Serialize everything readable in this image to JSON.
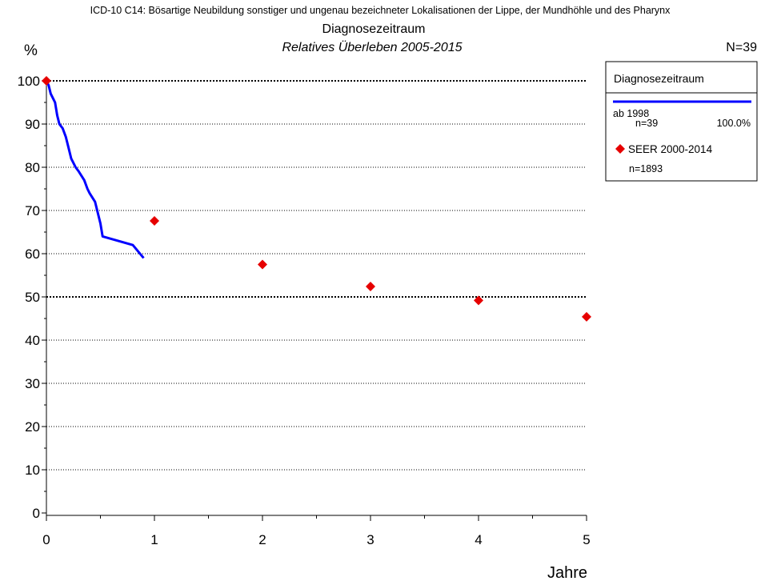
{
  "chart_data": {
    "type": "line",
    "suptitle": "ICD-10 C14: Bösartige Neubildung sonstiger und ungenau bezeichneter Lokalisationen der Lippe, der Mundhöhle und des Pharynx",
    "title": "Diagnosezeitraum",
    "subtitle": "Relatives Überleben 2005-2015",
    "ylabel": "%",
    "xlabel": "Jahre",
    "n_label": "N=39",
    "xlim": [
      0,
      5
    ],
    "ylim": [
      0,
      100
    ],
    "x_ticks": [
      "0",
      "1",
      "2",
      "3",
      "4",
      "5"
    ],
    "y_ticks": [
      "0",
      "10",
      "20",
      "30",
      "40",
      "50",
      "60",
      "70",
      "80",
      "90",
      "100"
    ],
    "grid": "horizontal dotted, every 10%",
    "legend_position": "top-right",
    "series": [
      {
        "name": "ab 1998",
        "style": "step-line",
        "color": "#0000ff",
        "x": [
          0,
          0.02,
          0.04,
          0.06,
          0.08,
          0.1,
          0.12,
          0.15,
          0.18,
          0.2,
          0.23,
          0.27,
          0.3,
          0.35,
          0.38,
          0.4,
          0.45,
          0.48,
          0.5,
          0.52,
          0.8,
          0.9
        ],
        "y": [
          100,
          99,
          97,
          96,
          95,
          92,
          90,
          89,
          87,
          85,
          82,
          80,
          79,
          77,
          75,
          74,
          72,
          69,
          67,
          64,
          62,
          59
        ]
      },
      {
        "name": "SEER 2000-2014",
        "style": "diamond-markers",
        "color": "#e60000",
        "x": [
          0,
          1,
          2,
          3,
          4,
          5
        ],
        "y": [
          100,
          67.6,
          57.5,
          52.4,
          49.2,
          45.4
        ]
      }
    ],
    "legend": {
      "title": "Diagnosezeitraum",
      "entries": [
        {
          "label": "ab 1998",
          "n": "n=39",
          "pct": "100.0%"
        },
        {
          "label": "SEER 2000-2014",
          "n": "n=1893"
        }
      ]
    }
  }
}
